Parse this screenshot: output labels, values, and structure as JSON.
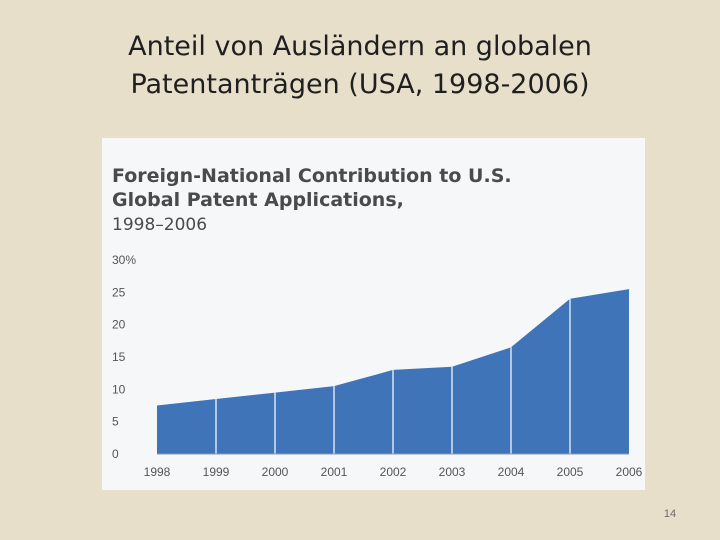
{
  "slide": {
    "title_line1": "Anteil von Ausländern an globalen",
    "title_line2": "Patentanträgen (USA, 1998-2006)",
    "page_number": "14"
  },
  "chart_data": {
    "type": "area",
    "title": "Foreign-National Contribution to U.S. Global Patent Applications,",
    "subtitle": "1998–2006",
    "categories": [
      "1998",
      "1999",
      "2000",
      "2001",
      "2002",
      "2003",
      "2004",
      "2005",
      "2006"
    ],
    "values": [
      7.5,
      8.5,
      9.5,
      10.5,
      13.0,
      13.5,
      16.5,
      24.0,
      25.5
    ],
    "y_ticks": [
      "30%",
      "25",
      "20",
      "15",
      "10",
      "5",
      "0"
    ],
    "ylim": [
      0,
      30
    ],
    "xlabel": "",
    "ylabel": "",
    "colors": {
      "fill": "#3f74b8",
      "divider": "#ffffff",
      "panel": "#f6f7f8"
    }
  }
}
